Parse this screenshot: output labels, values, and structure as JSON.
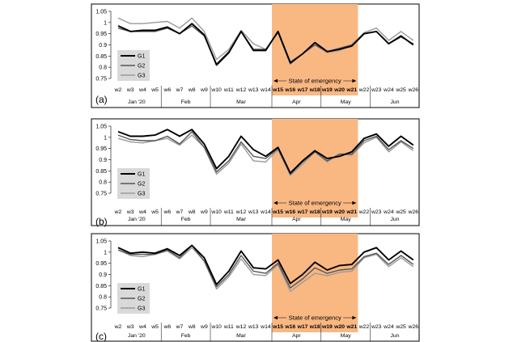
{
  "colors": {
    "G1": "#000000",
    "G2": "#555555",
    "G3": "#9a9a9a",
    "emergency_band": "#f9b782",
    "legend_box": "#d9d9d9"
  },
  "chart_data": [
    {
      "type": "line",
      "panel_label": "(a)",
      "x": [
        "w2",
        "w3",
        "w4",
        "w5",
        "w6",
        "w7",
        "w8",
        "w9",
        "w10",
        "w11",
        "w12",
        "w13",
        "w14",
        "w15",
        "w16",
        "w17",
        "w18",
        "w19",
        "w20",
        "w21",
        "w22",
        "w23",
        "w24",
        "w25",
        "w26"
      ],
      "ylim": [
        0.75,
        1.05
      ],
      "yticks": [
        "0.75",
        "0.8",
        "0.85",
        "0.9",
        "0.95",
        "1",
        "1.05"
      ],
      "months": [
        {
          "label": "Jan '20",
          "from": "w2",
          "to": "w5"
        },
        {
          "label": "Feb",
          "from": "w6",
          "to": "w9"
        },
        {
          "label": "Mar",
          "from": "w10",
          "to": "w14"
        },
        {
          "label": "Apr",
          "from": "w15",
          "to": "w18"
        },
        {
          "label": "May",
          "from": "w19",
          "to": "w22"
        },
        {
          "label": "Jun",
          "from": "w23",
          "to": "w26"
        }
      ],
      "shaded": {
        "from": "w15",
        "to": "w21",
        "label": "State of emergency"
      },
      "legend": [
        "G1",
        "G2",
        "G3"
      ],
      "series": [
        {
          "name": "G1",
          "values": [
            0.985,
            0.96,
            0.965,
            0.965,
            0.98,
            0.95,
            0.995,
            0.945,
            0.81,
            0.865,
            0.96,
            0.875,
            0.875,
            0.96,
            0.82,
            0.86,
            0.91,
            0.87,
            0.88,
            0.895,
            0.95,
            0.96,
            0.905,
            0.94,
            0.9
          ]
        },
        {
          "name": "G2",
          "values": [
            0.975,
            0.96,
            0.96,
            0.96,
            0.975,
            0.95,
            0.985,
            0.94,
            0.815,
            0.87,
            0.96,
            0.88,
            0.88,
            0.955,
            0.815,
            0.86,
            0.9,
            0.87,
            0.885,
            0.9,
            0.95,
            0.96,
            0.905,
            0.935,
            0.905
          ]
        },
        {
          "name": "G3",
          "values": [
            1.02,
            0.995,
            0.995,
            1.0,
            1.005,
            0.975,
            1.02,
            0.96,
            0.835,
            0.88,
            0.965,
            0.905,
            0.88,
            0.96,
            0.825,
            0.86,
            0.9,
            0.865,
            0.875,
            0.9,
            0.955,
            0.975,
            0.92,
            0.96,
            0.92
          ]
        }
      ]
    },
    {
      "type": "line",
      "panel_label": "(b)",
      "x": [
        "w2",
        "w3",
        "w4",
        "w5",
        "w6",
        "w7",
        "w8",
        "w9",
        "w10",
        "w11",
        "w12",
        "w13",
        "w14",
        "w15",
        "w16",
        "w17",
        "w18",
        "w19",
        "w20",
        "w21",
        "w22",
        "w23",
        "w24",
        "w25",
        "w26"
      ],
      "ylim": [
        0.75,
        1.05
      ],
      "yticks": [
        "0.75",
        "0.8",
        "0.85",
        "0.9",
        "0.95",
        "1",
        "1.05"
      ],
      "months": [
        {
          "label": "Jan '20",
          "from": "w2",
          "to": "w5"
        },
        {
          "label": "Feb",
          "from": "w6",
          "to": "w9"
        },
        {
          "label": "Mar",
          "from": "w10",
          "to": "w14"
        },
        {
          "label": "Apr",
          "from": "w15",
          "to": "w18"
        },
        {
          "label": "May",
          "from": "w19",
          "to": "w22"
        },
        {
          "label": "Jun",
          "from": "w23",
          "to": "w26"
        }
      ],
      "shaded": {
        "from": "w15",
        "to": "w21",
        "label": "State of emergency"
      },
      "legend": [
        "G1",
        "G2",
        "G3"
      ],
      "series": [
        {
          "name": "G1",
          "values": [
            1.025,
            1.005,
            1.005,
            1.01,
            1.035,
            1.005,
            1.035,
            0.97,
            0.86,
            0.915,
            1.005,
            0.945,
            0.915,
            0.955,
            0.84,
            0.895,
            0.94,
            0.905,
            0.915,
            0.935,
            0.995,
            1.015,
            0.96,
            1.005,
            0.965
          ]
        },
        {
          "name": "G2",
          "values": [
            1.01,
            0.99,
            0.985,
            0.985,
            1.005,
            0.97,
            1.025,
            0.955,
            0.845,
            0.895,
            0.98,
            0.915,
            0.905,
            0.95,
            0.835,
            0.89,
            0.935,
            0.895,
            0.925,
            0.925,
            0.985,
            1.005,
            0.945,
            0.985,
            0.95
          ]
        },
        {
          "name": "G3",
          "values": [
            0.995,
            0.98,
            0.975,
            0.985,
            0.995,
            0.965,
            1.01,
            0.955,
            0.835,
            0.885,
            0.97,
            0.895,
            0.89,
            0.945,
            0.83,
            0.88,
            0.935,
            0.89,
            0.925,
            0.92,
            0.975,
            1.0,
            0.935,
            0.98,
            0.94
          ]
        }
      ]
    },
    {
      "type": "line",
      "panel_label": "(c)",
      "x": [
        "w2",
        "w3",
        "w4",
        "w5",
        "w6",
        "w7",
        "w8",
        "w9",
        "w10",
        "w11",
        "w12",
        "w13",
        "w14",
        "w15",
        "w16",
        "w17",
        "w18",
        "w19",
        "w20",
        "w21",
        "w22",
        "w23",
        "w24",
        "w25",
        "w26"
      ],
      "ylim": [
        0.75,
        1.05
      ],
      "yticks": [
        "0.75",
        "0.8",
        "0.85",
        "0.9",
        "0.95",
        "1",
        "1.05"
      ],
      "months": [
        {
          "label": "Jan '20",
          "from": "w2",
          "to": "w5"
        },
        {
          "label": "Feb",
          "from": "w6",
          "to": "w9"
        },
        {
          "label": "Mar",
          "from": "w10",
          "to": "w14"
        },
        {
          "label": "Apr",
          "from": "w15",
          "to": "w18"
        },
        {
          "label": "May",
          "from": "w19",
          "to": "w22"
        },
        {
          "label": "Jun",
          "from": "w23",
          "to": "w26"
        }
      ],
      "shaded": {
        "from": "w15",
        "to": "w21",
        "label": "State of emergency"
      },
      "legend": [
        "G1",
        "G2",
        "G3"
      ],
      "series": [
        {
          "name": "G1",
          "values": [
            1.02,
            0.995,
            1.0,
            0.995,
            1.015,
            0.985,
            1.03,
            0.975,
            0.855,
            0.915,
            1.005,
            0.93,
            0.925,
            0.965,
            0.86,
            0.9,
            0.955,
            0.92,
            0.94,
            0.945,
            1.0,
            1.02,
            0.965,
            1.005,
            0.965
          ]
        },
        {
          "name": "G2",
          "values": [
            1.01,
            0.99,
            0.99,
            0.99,
            1.01,
            0.975,
            1.03,
            0.96,
            0.845,
            0.9,
            0.985,
            0.915,
            0.905,
            0.95,
            0.84,
            0.88,
            0.93,
            0.905,
            0.92,
            0.925,
            0.98,
            0.995,
            0.945,
            0.985,
            0.945
          ]
        },
        {
          "name": "G3",
          "values": [
            1.01,
            0.985,
            0.98,
            0.99,
            1.005,
            0.97,
            1.02,
            0.96,
            0.835,
            0.89,
            0.97,
            0.9,
            0.895,
            0.945,
            0.825,
            0.865,
            0.905,
            0.895,
            0.91,
            0.915,
            0.975,
            0.99,
            0.935,
            0.975,
            0.935
          ]
        }
      ]
    }
  ]
}
